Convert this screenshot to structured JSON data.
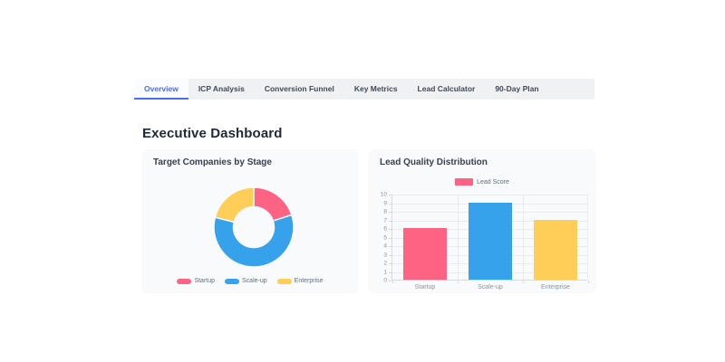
{
  "tabs": {
    "active_color": "#4a6cf8",
    "items": [
      {
        "label": "Overview",
        "active": true
      },
      {
        "label": "ICP Analysis",
        "active": false
      },
      {
        "label": "Conversion Funnel",
        "active": false
      },
      {
        "label": "Key Metrics",
        "active": false
      },
      {
        "label": "Lead Calculator",
        "active": false
      },
      {
        "label": "90-Day Plan",
        "active": false
      }
    ]
  },
  "header": {
    "title": "Executive Dashboard"
  },
  "colors": {
    "pink": "#ff6384",
    "blue": "#36a2eb",
    "yellow": "#ffce56",
    "card_background": "#f9fafb",
    "tabbar_background": "#f0f1f3"
  },
  "chart_data": [
    {
      "type": "pie",
      "style": "doughnut",
      "title": "Target Companies by Stage",
      "categories": [
        "Startup",
        "Scale-up",
        "Enterprise"
      ],
      "values": [
        20,
        59,
        21
      ],
      "colors": [
        "#ff6384",
        "#36a2eb",
        "#ffce56"
      ],
      "legend_position": "bottom"
    },
    {
      "type": "bar",
      "title": "Lead Quality Distribution",
      "categories": [
        "Startup",
        "Scale-up",
        "Enterprise"
      ],
      "series": [
        {
          "name": "Lead Score",
          "values": [
            6,
            9,
            7
          ]
        }
      ],
      "bar_colors": [
        "#ff6384",
        "#36a2eb",
        "#ffce56"
      ],
      "ylabel": "",
      "xlabel": "",
      "ylim": [
        0,
        10
      ],
      "ytick_step": 1,
      "grid": true,
      "legend_position": "top",
      "legend_swatch_color": "#ff6384"
    }
  ]
}
